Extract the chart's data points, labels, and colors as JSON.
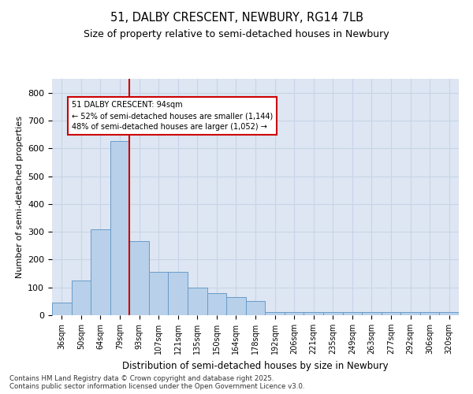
{
  "title1": "51, DALBY CRESCENT, NEWBURY, RG14 7LB",
  "title2": "Size of property relative to semi-detached houses in Newbury",
  "xlabel": "Distribution of semi-detached houses by size in Newbury",
  "ylabel": "Number of semi-detached properties",
  "bins": [
    "36sqm",
    "50sqm",
    "64sqm",
    "79sqm",
    "93sqm",
    "107sqm",
    "121sqm",
    "135sqm",
    "150sqm",
    "164sqm",
    "178sqm",
    "192sqm",
    "206sqm",
    "221sqm",
    "235sqm",
    "249sqm",
    "263sqm",
    "277sqm",
    "292sqm",
    "306sqm",
    "320sqm"
  ],
  "bar_heights": [
    45,
    125,
    310,
    625,
    265,
    155,
    155,
    100,
    80,
    65,
    50,
    10,
    10,
    10,
    10,
    10,
    10,
    10,
    10,
    10,
    10
  ],
  "bar_color": "#b8d0ea",
  "bar_edge_color": "#6a9cc8",
  "grid_color": "#c8d4e8",
  "background_color": "#dde6f2",
  "vline_color": "#cc0000",
  "annotation_title": "51 DALBY CRESCENT: 94sqm",
  "annotation_line1": "← 52% of semi-detached houses are smaller (1,144)",
  "annotation_line2": "48% of semi-detached houses are larger (1,052) →",
  "annotation_box_color": "#cc0000",
  "footer": "Contains HM Land Registry data © Crown copyright and database right 2025.\nContains public sector information licensed under the Open Government Licence v3.0.",
  "ylim": [
    0,
    850
  ],
  "yticks": [
    0,
    100,
    200,
    300,
    400,
    500,
    600,
    700,
    800
  ]
}
